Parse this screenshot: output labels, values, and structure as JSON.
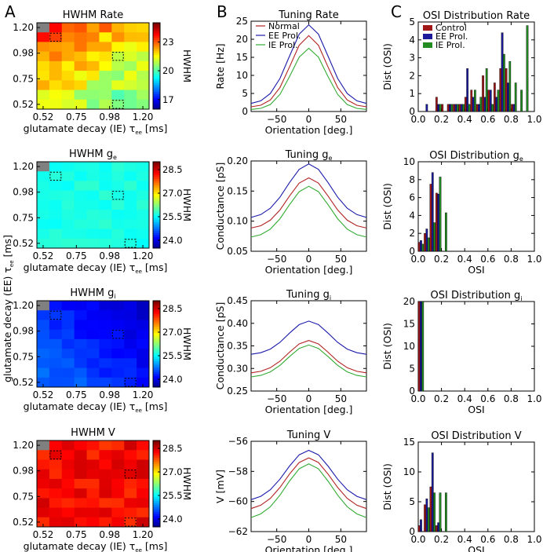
{
  "panel_labels": [
    "A",
    "B",
    "C"
  ],
  "colors": {
    "normal": "#b22222",
    "ee": "#1a1aaa",
    "ie": "#33aa33",
    "control_bar": "#a01818",
    "ee_bar": "#1a1a9a",
    "ie_bar": "#228b22"
  },
  "chart_data": [
    {
      "type": "heatmap",
      "id": "hm-rate",
      "title": "HWHM Rate",
      "title_sub": "",
      "xlabel": "glutamate decay (IE) τ",
      "xlabel_sub": "ee",
      "xlabel_unit": " [ms]",
      "ylabel": "",
      "ylabel_sub": "",
      "x_ticks": [
        "0.52",
        "0.75",
        "0.98",
        "1.20"
      ],
      "y_ticks": [
        "1.20",
        "0.98",
        "0.75",
        "0.52"
      ],
      "colorbar": {
        "label": "HWHM",
        "ticks": [
          "23",
          "20",
          "17"
        ],
        "range": [
          16,
          25
        ]
      },
      "grid_size": 9,
      "base": 21.5,
      "trend_x": -1.5,
      "trend_y": 2.0,
      "noise": 0.6,
      "seed": 3,
      "highlight_cells": [
        [
          1,
          1
        ],
        [
          3,
          6
        ],
        [
          8,
          6
        ]
      ],
      "missing_cell": [
        0,
        0
      ]
    },
    {
      "type": "heatmap",
      "id": "hm-ge",
      "title": "HWHM g",
      "title_sub": "e",
      "xlabel": "glutamate decay (IE) τ",
      "xlabel_sub": "ee",
      "xlabel_unit": " [ms]",
      "ylabel": "",
      "ylabel_sub": "",
      "x_ticks": [
        "0.52",
        "0.75",
        "0.98",
        "1.20"
      ],
      "y_ticks": [
        "1.20",
        "0.98",
        "0.75",
        "0.52"
      ],
      "colorbar": {
        "label": "HWHM",
        "ticks": [
          "28.5",
          "27.0",
          "25.5",
          "24.0"
        ],
        "range": [
          23.5,
          29
        ]
      },
      "grid_size": 9,
      "base": 25.7,
      "trend_x": 0,
      "trend_y": 0,
      "noise": 0.12,
      "seed": 7,
      "highlight_cells": [
        [
          1,
          1
        ],
        [
          3,
          6
        ],
        [
          8,
          7
        ]
      ],
      "missing_cell": [
        0,
        0
      ]
    },
    {
      "type": "heatmap",
      "id": "hm-gi",
      "title": "HWHM g",
      "title_sub": "i",
      "xlabel": "glutamate decay (IE) τ",
      "xlabel_sub": "ee",
      "xlabel_unit": " [ms]",
      "ylabel": "glutamate decay (EE) τ",
      "ylabel_sub": "ee",
      "ylabel_unit": " [ms]",
      "x_ticks": [
        "0.52",
        "0.75",
        "0.98",
        "1.20"
      ],
      "y_ticks": [
        "1.20",
        "0.98",
        "0.75",
        "0.52"
      ],
      "colorbar": {
        "label": "HWHM",
        "ticks": [
          "28.5",
          "27.0",
          "25.5",
          "24.0"
        ],
        "range": [
          23.5,
          29
        ]
      },
      "grid_size": 9,
      "base": 24.8,
      "trend_x": -0.5,
      "trend_y": -0.4,
      "noise": 0.15,
      "seed": 11,
      "highlight_cells": [
        [
          1,
          1
        ],
        [
          3,
          6
        ],
        [
          8,
          7
        ]
      ],
      "missing_cell": [
        0,
        0
      ]
    },
    {
      "type": "heatmap",
      "id": "hm-v",
      "title": "HWHM V",
      "title_sub": "",
      "xlabel": "glutamate decay (IE) τ",
      "xlabel_sub": "ee",
      "xlabel_unit": " [ms]",
      "ylabel": "",
      "ylabel_sub": "",
      "x_ticks": [
        "0.52",
        "0.75",
        "0.98",
        "1.20"
      ],
      "y_ticks": [
        "1.20",
        "0.98",
        "0.75",
        "0.52"
      ],
      "colorbar": {
        "label": "HWHM",
        "ticks": [
          "28.5",
          "27.0",
          "25.5",
          "24.0"
        ],
        "range": [
          23.5,
          29
        ]
      },
      "grid_size": 9,
      "base": 28.3,
      "trend_x": 0,
      "trend_y": 0,
      "noise": 0.3,
      "seed": 5,
      "highlight_cells": [
        [
          1,
          1
        ],
        [
          3,
          7
        ],
        [
          8,
          7
        ]
      ],
      "missing_cell": [
        0,
        0
      ]
    },
    {
      "type": "line",
      "id": "tune-rate",
      "title": "Tuning Rate",
      "title_sub": "",
      "xlabel": "Orientation [deg.]",
      "ylabel": "Rate [Hz]",
      "xlim": [
        -90,
        90
      ],
      "ylim": [
        0,
        25
      ],
      "x_ticks": [
        -50,
        0,
        50
      ],
      "y_ticks": [
        0,
        5,
        10,
        15,
        20,
        25
      ],
      "legend": [
        "Normal",
        "EE Prol.",
        "IE Prol."
      ],
      "series": [
        {
          "name": "Normal",
          "base": 1.2,
          "peak": 21.0,
          "width": 28
        },
        {
          "name": "EE Prol.",
          "base": 2.0,
          "peak": 24.0,
          "width": 30
        },
        {
          "name": "IE Prol.",
          "base": 0.5,
          "peak": 17.5,
          "width": 27
        }
      ]
    },
    {
      "type": "line",
      "id": "tune-ge",
      "title": "Tuning g",
      "title_sub": "e",
      "xlabel": "Orientation [deg.]",
      "ylabel": "Conductance [pS]",
      "xlim": [
        -90,
        90
      ],
      "ylim": [
        0.05,
        0.2
      ],
      "x_ticks": [
        -50,
        0,
        50
      ],
      "y_ticks": [
        0.05,
        0.1,
        0.15,
        0.2
      ],
      "y_tick_labels": [
        "0.05",
        "0.10",
        "0.15",
        "0.20"
      ],
      "series": [
        {
          "name": "Normal",
          "base": 0.087,
          "peak": 0.172,
          "width": 32
        },
        {
          "name": "EE Prol.",
          "base": 0.104,
          "peak": 0.195,
          "width": 33
        },
        {
          "name": "IE Prol.",
          "base": 0.072,
          "peak": 0.158,
          "width": 32
        }
      ]
    },
    {
      "type": "line",
      "id": "tune-gi",
      "title": "Tuning g",
      "title_sub": "i",
      "xlabel": "Orientation [deg.]",
      "ylabel": "Conductance [pS]",
      "xlim": [
        -90,
        90
      ],
      "ylim": [
        0.25,
        0.45
      ],
      "x_ticks": [
        -50,
        0,
        50
      ],
      "y_ticks": [
        0.25,
        0.3,
        0.35,
        0.4,
        0.45
      ],
      "y_tick_labels": [
        "0.25",
        "0.30",
        "0.35",
        "0.40",
        "0.45"
      ],
      "series": [
        {
          "name": "Normal",
          "base": 0.289,
          "peak": 0.362,
          "width": 32
        },
        {
          "name": "EE Prol.",
          "base": 0.33,
          "peak": 0.405,
          "width": 32
        },
        {
          "name": "IE Prol.",
          "base": 0.28,
          "peak": 0.352,
          "width": 32
        }
      ]
    },
    {
      "type": "line",
      "id": "tune-v",
      "title": "Tuning V",
      "title_sub": "",
      "xlabel": "Orientation [deg.]",
      "ylabel": "V [mV]",
      "xlim": [
        -90,
        90
      ],
      "ylim": [
        -62,
        -56
      ],
      "x_ticks": [
        -50,
        0,
        50
      ],
      "y_ticks": [
        -62,
        -60,
        -58,
        -56
      ],
      "series": [
        {
          "name": "Normal",
          "base": -60.6,
          "peak": -57.1,
          "width": 35
        },
        {
          "name": "EE Prol.",
          "base": -60.0,
          "peak": -56.6,
          "width": 35
        },
        {
          "name": "IE Prol.",
          "base": -61.2,
          "peak": -57.5,
          "width": 35
        }
      ]
    },
    {
      "type": "bar",
      "id": "osi-rate",
      "title": "OSI Distribution Rate",
      "title_sub": "",
      "xlabel": "",
      "ylabel": "Dist (OSI)",
      "xlim": [
        0,
        1
      ],
      "ylim": [
        0,
        5
      ],
      "x_ticks": [
        0,
        0.2,
        0.4,
        0.6,
        0.8,
        1.0
      ],
      "x_tick_labels": [
        "0.0",
        "0.2",
        "0.4",
        "0.6",
        "0.8",
        "1.0"
      ],
      "y_ticks": [
        0,
        1,
        2,
        3,
        4,
        5
      ],
      "legend": [
        "Control",
        "EE Prol.",
        "IE Prol."
      ],
      "bin_width": 0.05,
      "series": [
        {
          "name": "Control",
          "values": [
            0,
            0,
            0,
            0.8,
            0.4,
            0.4,
            0.4,
            0.4,
            0.8,
            1.2,
            0.4,
            2.0,
            1.2,
            1.6,
            2.4,
            2.4,
            0.4,
            0,
            0,
            0
          ]
        },
        {
          "name": "EE Prol.",
          "values": [
            0,
            0.4,
            0,
            0.4,
            0,
            0.4,
            0.4,
            0.4,
            2.4,
            0.8,
            0.4,
            0.8,
            1.2,
            0.8,
            4.4,
            1.6,
            0.4,
            0,
            0,
            0
          ]
        },
        {
          "name": "IE Prol.",
          "values": [
            0,
            0,
            0,
            0.4,
            0,
            0.4,
            0.4,
            0.4,
            0.4,
            1.2,
            0.8,
            2.4,
            0.4,
            1.2,
            3.2,
            2.8,
            1.6,
            1.2,
            4.8,
            0
          ]
        }
      ]
    },
    {
      "type": "bar",
      "id": "osi-ge",
      "title": "OSI Distribution g",
      "title_sub": "e",
      "xlabel": "OSI",
      "ylabel": "Dist (OSI)",
      "xlim": [
        0,
        1
      ],
      "ylim": [
        0,
        10
      ],
      "x_ticks": [
        0,
        0.2,
        0.4,
        0.6,
        0.8,
        1.0
      ],
      "x_tick_labels": [
        "0.0",
        "0.2",
        "0.4",
        "0.6",
        "0.8",
        "1.0"
      ],
      "y_ticks": [
        0,
        2,
        4,
        6,
        8,
        10
      ],
      "bin_width": 0.05,
      "series": [
        {
          "name": "Control",
          "values": [
            1.0,
            2.0,
            7.5,
            6.5,
            0,
            0,
            0,
            0,
            0,
            0,
            0,
            0,
            0,
            0,
            0,
            0,
            0,
            0,
            0,
            0
          ]
        },
        {
          "name": "EE Prol.",
          "values": [
            1.2,
            2.5,
            8.8,
            6.4,
            0,
            0,
            0,
            0,
            0,
            0,
            0,
            0,
            0,
            0,
            0,
            0,
            0,
            0,
            0,
            0
          ]
        },
        {
          "name": "IE Prol.",
          "values": [
            0.8,
            1.5,
            3.2,
            8.3,
            4.3,
            0,
            0,
            0,
            0,
            0,
            0,
            0,
            0,
            0,
            0,
            0,
            0,
            0,
            0,
            0
          ]
        }
      ]
    },
    {
      "type": "bar",
      "id": "osi-gi",
      "title": "OSI Distribution g",
      "title_sub": "i",
      "xlabel": "OSI",
      "ylabel": "Dist (OSI)",
      "xlim": [
        0,
        1
      ],
      "ylim": [
        0,
        20
      ],
      "x_ticks": [
        0,
        0.2,
        0.4,
        0.6,
        0.8,
        1.0
      ],
      "x_tick_labels": [
        "0.0",
        "0.2",
        "0.4",
        "0.6",
        "0.8",
        "1.0"
      ],
      "y_ticks": [
        0,
        5,
        10,
        15,
        20
      ],
      "bin_width": 0.05,
      "series": [
        {
          "name": "Control",
          "values": [
            20,
            0,
            0,
            0,
            0,
            0,
            0,
            0,
            0,
            0,
            0,
            0,
            0,
            0,
            0,
            0,
            0,
            0,
            0,
            0
          ]
        },
        {
          "name": "EE Prol.",
          "values": [
            20,
            0,
            0,
            0,
            0,
            0,
            0,
            0,
            0,
            0,
            0,
            0,
            0,
            0,
            0,
            0,
            0,
            0,
            0,
            0
          ]
        },
        {
          "name": "IE Prol.",
          "values": [
            20,
            0,
            0,
            0,
            0,
            0,
            0,
            0,
            0,
            0,
            0,
            0,
            0,
            0,
            0,
            0,
            0,
            0,
            0,
            0
          ]
        }
      ]
    },
    {
      "type": "bar",
      "id": "osi-v",
      "title": "OSI Distribution V",
      "title_sub": "",
      "xlabel": "OSI",
      "ylabel": "Dist (OSI)",
      "xlim": [
        0,
        1
      ],
      "ylim": [
        0,
        15
      ],
      "x_ticks": [
        0,
        0.2,
        0.4,
        0.6,
        0.8,
        1.0
      ],
      "x_tick_labels": [
        "0.0",
        "0.2",
        "0.4",
        "0.6",
        "0.8",
        "1.0"
      ],
      "y_ticks": [
        0,
        5,
        10,
        15
      ],
      "bin_width": 0.05,
      "series": [
        {
          "name": "Control",
          "values": [
            1.0,
            4.5,
            7.5,
            1.0,
            0,
            0,
            0,
            0,
            0,
            0,
            0,
            0,
            0,
            0,
            0,
            0,
            0,
            0,
            0,
            0
          ]
        },
        {
          "name": "EE Prol.",
          "values": [
            2.0,
            5.5,
            13.2,
            1.5,
            0,
            0,
            0,
            0,
            0,
            0,
            0,
            0,
            0,
            0,
            0,
            0,
            0,
            0,
            0,
            0
          ]
        },
        {
          "name": "IE Prol.",
          "values": [
            0,
            4.0,
            6.5,
            6.5,
            6.5,
            0,
            0,
            0,
            0,
            0,
            0,
            0,
            0,
            0,
            0,
            0,
            0,
            0,
            0,
            0
          ]
        }
      ]
    }
  ]
}
